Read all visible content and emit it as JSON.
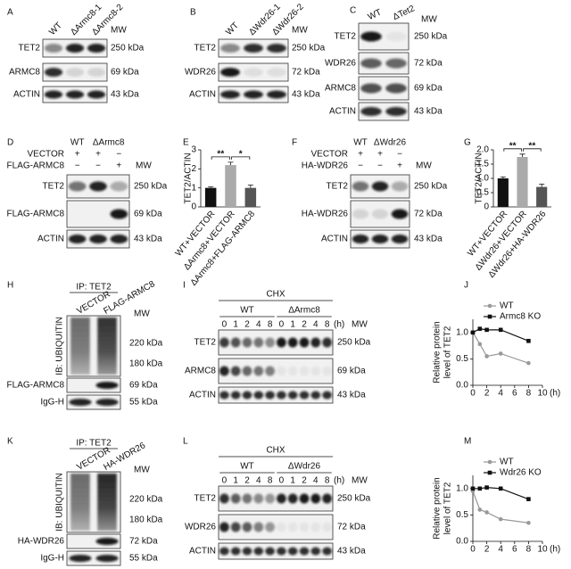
{
  "panels": [
    {
      "label": "A",
      "lanes": [
        "WT",
        "ΔArmc8-1",
        "ΔArmc8-2"
      ],
      "mw_title": "MW",
      "blots": [
        {
          "protein": "TET2",
          "mw": "250 kDa"
        },
        {
          "protein": "ARMC8",
          "mw": "69 kDa"
        },
        {
          "protein": "ACTIN",
          "mw": "43 kDa"
        }
      ]
    },
    {
      "label": "B",
      "lanes": [
        "WT",
        "ΔWdr26-1",
        "ΔWdr26-2"
      ],
      "mw_title": "MW",
      "blots": [
        {
          "protein": "TET2",
          "mw": "250 kDa"
        },
        {
          "protein": "WDR26",
          "mw": "72 kDa"
        },
        {
          "protein": "ACTIN",
          "mw": "43 kDa"
        }
      ]
    },
    {
      "label": "C",
      "lanes": [
        "WT",
        "ΔTet2"
      ],
      "mw_title": "MW",
      "blots": [
        {
          "protein": "TET2",
          "mw": "250 kDa"
        },
        {
          "protein": "WDR26",
          "mw": "72 kDa"
        },
        {
          "protein": "ARMC8",
          "mw": "69 kDa"
        },
        {
          "protein": "ACTIN",
          "mw": "43 kDa"
        }
      ]
    },
    {
      "label": "D",
      "groups": [
        "WT",
        "ΔArmc8"
      ],
      "treatments": [
        {
          "name": "VECTOR",
          "signs": [
            "+",
            "+",
            "−"
          ]
        },
        {
          "name": "FLAG-ARMC8",
          "signs": [
            "−",
            "−",
            "+"
          ]
        }
      ],
      "mw_title": "MW",
      "blots": [
        {
          "protein": "TET2",
          "mw": "250 kDa"
        },
        {
          "protein": "FLAG-ARMC8",
          "mw": "69 kDa"
        },
        {
          "protein": "ACTIN",
          "mw": "43 kDa"
        }
      ]
    },
    {
      "label": "F",
      "groups": [
        "WT",
        "ΔWdr26"
      ],
      "treatments": [
        {
          "name": "VECTOR",
          "signs": [
            "+",
            "+",
            "−"
          ]
        },
        {
          "name": "HA-WDR26",
          "signs": [
            "−",
            "−",
            "+"
          ]
        }
      ],
      "mw_title": "MW",
      "blots": [
        {
          "protein": "TET2",
          "mw": "250 kDa"
        },
        {
          "protein": "HA-WDR26",
          "mw": "72 kDa"
        },
        {
          "protein": "ACTIN",
          "mw": "43 kDa"
        }
      ]
    },
    {
      "label": "H",
      "ip": "IP: TET2",
      "lanes": [
        "VECTOR",
        "FLAG-ARMC8"
      ],
      "mw_title": "MW",
      "blots": [
        {
          "protein": "IB: UBIQUITIN",
          "mw": [
            "220 kDa",
            "180 kDa"
          ]
        },
        {
          "protein": "FLAG-ARMC8",
          "mw": "69 kDa"
        },
        {
          "protein": "IgG-H",
          "mw": "55 kDa"
        }
      ]
    },
    {
      "label": "I",
      "treatment": "CHX",
      "groups": [
        "WT",
        "ΔArmc8"
      ],
      "times": [
        "0",
        "1",
        "2",
        "4",
        "8"
      ],
      "time_unit": "(h)",
      "mw_title": "MW",
      "blots": [
        {
          "protein": "TET2",
          "mw": "250 kDa"
        },
        {
          "protein": "ARMC8",
          "mw": "69 kDa"
        },
        {
          "protein": "ACTIN",
          "mw": "43 kDa"
        }
      ]
    },
    {
      "label": "K",
      "ip": "IP: TET2",
      "lanes": [
        "VECTOR",
        "HA-WDR26"
      ],
      "mw_title": "MW",
      "blots": [
        {
          "protein": "IB: UBIQUITIN",
          "mw": [
            "220 kDa",
            "180 kDa"
          ]
        },
        {
          "protein": "HA-WDR26",
          "mw": "72 kDa"
        },
        {
          "protein": "IgG-H",
          "mw": "55 kDa"
        }
      ]
    },
    {
      "label": "L",
      "treatment": "CHX",
      "groups": [
        "WT",
        "ΔWdr26"
      ],
      "times": [
        "0",
        "1",
        "2",
        "4",
        "8"
      ],
      "time_unit": "(h)",
      "mw_title": "MW",
      "blots": [
        {
          "protein": "TET2",
          "mw": "250 kDa"
        },
        {
          "protein": "WDR26",
          "mw": "72 kDa"
        },
        {
          "protein": "ACTIN",
          "mw": "43 kDa"
        }
      ]
    }
  ],
  "chart_data": [
    {
      "panel_label": "E",
      "type": "bar",
      "ylabel": "TET2/ACTIN",
      "categories": [
        "WT+VECTOR",
        "ΔArmc8+VECTOR",
        "ΔArmc8+FLAG-ARMC8"
      ],
      "values": [
        1.0,
        2.2,
        1.0
      ],
      "errors": [
        0.05,
        0.15,
        0.15
      ],
      "colors": [
        "#111111",
        "#aaaaaa",
        "#555555"
      ],
      "ylim": [
        0,
        3
      ],
      "yticks": [
        0,
        1,
        2,
        3
      ],
      "significance": [
        "**",
        "*"
      ]
    },
    {
      "panel_label": "G",
      "type": "bar",
      "ylabel": "TET2/ACTIN",
      "categories": [
        "WT+VECTOR",
        "ΔWdr26+VECTOR",
        "ΔWdr26+HA-WDR26"
      ],
      "values": [
        1.0,
        1.75,
        0.7
      ],
      "errors": [
        0.05,
        0.1,
        0.1
      ],
      "colors": [
        "#111111",
        "#aaaaaa",
        "#555555"
      ],
      "ylim": [
        0,
        2
      ],
      "yticks": [
        0,
        0.5,
        {
          "value": 1,
          "label": "1.0"
        },
        1.5,
        {
          "value": 2,
          "label": "2.0"
        }
      ],
      "significance": [
        "**",
        "**"
      ]
    },
    {
      "panel_label": "J",
      "type": "line",
      "ylabel": [
        "Relative protein",
        "level of TET2"
      ],
      "xlabel": "(h)",
      "x": [
        0,
        1,
        2,
        4,
        8
      ],
      "series": [
        {
          "name": "WT",
          "color": "#999999",
          "values": [
            1.0,
            0.78,
            0.55,
            0.6,
            0.42
          ]
        },
        {
          "name": "Armc8 KO",
          "color": "#111111",
          "values": [
            1.0,
            1.07,
            1.05,
            1.05,
            0.84
          ]
        }
      ],
      "xlim": [
        0,
        10
      ],
      "ylim": [
        0,
        1.25
      ],
      "xticks": [
        0,
        2,
        4,
        6,
        8,
        10
      ],
      "yticks": [
        {
          "value": 0,
          "label": "0.0"
        },
        0.5,
        {
          "value": 1,
          "label": "1.0"
        }
      ]
    },
    {
      "panel_label": "M",
      "type": "line",
      "ylabel": [
        "Relative protein",
        "level of TET2"
      ],
      "xlabel": "(h)",
      "x": [
        0,
        1,
        2,
        4,
        8
      ],
      "series": [
        {
          "name": "WT",
          "color": "#999999",
          "values": [
            0.95,
            0.6,
            0.55,
            0.42,
            0.35
          ]
        },
        {
          "name": "Wdr26 KO",
          "color": "#111111",
          "values": [
            1.0,
            1.0,
            1.02,
            1.0,
            0.8
          ]
        }
      ],
      "xlim": [
        0,
        10
      ],
      "ylim": [
        0,
        1.25
      ],
      "xticks": [
        0,
        2,
        4,
        6,
        8,
        10
      ],
      "yticks": [
        {
          "value": 0,
          "label": "0.0"
        },
        0.5,
        {
          "value": 1,
          "label": "1.0"
        }
      ]
    }
  ]
}
